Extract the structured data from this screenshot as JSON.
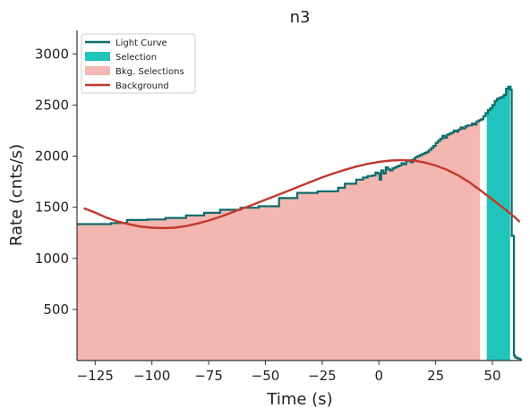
{
  "chart_data": {
    "type": "line",
    "title": "n3",
    "xlabel": "Time (s)",
    "ylabel": "Rate (cnts/s)",
    "xlim": [
      -133,
      63
    ],
    "ylim": [
      0,
      3230
    ],
    "xticks": [
      -125,
      -100,
      -75,
      -50,
      -25,
      0,
      25,
      50
    ],
    "yticks": [
      500,
      1000,
      1500,
      2000,
      2500,
      3000
    ],
    "legend_position": "top-left",
    "grid": false,
    "legend": [
      {
        "label": "Light Curve",
        "kind": "line",
        "color": "#0e6b6b"
      },
      {
        "label": "Selection",
        "kind": "patch",
        "color": "#20c4ba"
      },
      {
        "label": "Bkg. Selections",
        "kind": "patch",
        "color": "#f4b6b0"
      },
      {
        "label": "Background",
        "kind": "line",
        "color": "#c0392b"
      }
    ],
    "bkg_selections": [
      [
        -133,
        44.5
      ]
    ],
    "selection": [
      [
        47.5,
        57.8
      ]
    ],
    "light_curve": {
      "name": "Light Curve",
      "x": [
        -133,
        -118,
        -111,
        -102,
        -94,
        -85,
        -77,
        -70,
        -61,
        -53,
        -44,
        -36,
        -27,
        -18,
        -15,
        -10,
        -7,
        -5,
        -3,
        -1.5,
        -0.5,
        0.3,
        1,
        2,
        3,
        4,
        5,
        6,
        7,
        8,
        9,
        10,
        11,
        12,
        13,
        14,
        15,
        16,
        17,
        18,
        19,
        20,
        21,
        22,
        23,
        24,
        25,
        26,
        27,
        28,
        29,
        30,
        31,
        32,
        33,
        34,
        35,
        36,
        37,
        38,
        39,
        40,
        41,
        42,
        43,
        44,
        45,
        46,
        47,
        48,
        49,
        50,
        51,
        52,
        53,
        54,
        55,
        56,
        57,
        58,
        58.5,
        59.5,
        60,
        61,
        62,
        63
      ],
      "y": [
        1335,
        1345,
        1375,
        1380,
        1395,
        1420,
        1445,
        1475,
        1495,
        1510,
        1590,
        1640,
        1655,
        1690,
        1730,
        1770,
        1790,
        1805,
        1810,
        1840,
        1830,
        1770,
        1860,
        1830,
        1890,
        1870,
        1860,
        1880,
        1890,
        1900,
        1910,
        1930,
        1920,
        1950,
        1960,
        1940,
        1970,
        1990,
        2000,
        2010,
        2020,
        2030,
        2040,
        2060,
        2080,
        2100,
        2130,
        2150,
        2170,
        2200,
        2180,
        2210,
        2220,
        2230,
        2250,
        2240,
        2260,
        2280,
        2270,
        2290,
        2300,
        2300,
        2320,
        2310,
        2340,
        2350,
        2360,
        2390,
        2420,
        2450,
        2470,
        2500,
        2540,
        2560,
        2570,
        2580,
        2600,
        2660,
        2680,
        2650,
        1220,
        50,
        30,
        20,
        10,
        0
      ]
    },
    "background": {
      "name": "Background",
      "x": [
        -130,
        -125,
        -120,
        -115,
        -110,
        -105,
        -100,
        -95,
        -90,
        -85,
        -80,
        -75,
        -70,
        -65,
        -60,
        -55,
        -50,
        -45,
        -40,
        -35,
        -30,
        -25,
        -20,
        -15,
        -10,
        -5,
        0,
        5,
        10,
        15,
        20,
        25,
        30,
        35,
        40,
        45,
        50,
        55,
        60,
        62
      ],
      "y": [
        1490,
        1448,
        1398,
        1360,
        1333,
        1310,
        1300,
        1296,
        1300,
        1316,
        1340,
        1370,
        1406,
        1446,
        1488,
        1530,
        1574,
        1616,
        1660,
        1704,
        1748,
        1792,
        1830,
        1866,
        1898,
        1924,
        1944,
        1956,
        1962,
        1958,
        1938,
        1908,
        1866,
        1810,
        1742,
        1660,
        1576,
        1490,
        1400,
        1355
      ]
    }
  }
}
